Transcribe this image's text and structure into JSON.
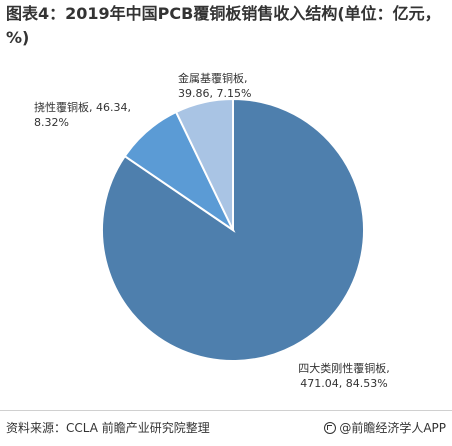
{
  "chart_data": {
    "type": "pie",
    "title": "图表4：2019年中国PCB覆铜板销售收入结构(单位：亿元，%)",
    "slices": [
      {
        "label": "四大类刚性覆铜板,",
        "value": 471.04,
        "percent": 84.53,
        "value_text": "471.04, 84.53%",
        "color": "#4e7fad"
      },
      {
        "label": "挠性覆铜板,",
        "value": 46.34,
        "percent": 8.32,
        "value_text": "46.34,",
        "percent_text": "8.32%",
        "color": "#5b9bd5"
      },
      {
        "label": "金属基覆铜板,",
        "value": 39.86,
        "percent": 7.15,
        "value_text": "39.86, 7.15%",
        "color": "#a9c4e4"
      }
    ],
    "start_angle_deg": 0,
    "direction": "clockwise",
    "legend": "none",
    "label_placement": "outside"
  },
  "footer": {
    "source": "资料来源：CCLA 前瞻产业研究院整理",
    "brand": "@前瞻经济学人APP",
    "brand_icon": "brand-logo-icon"
  },
  "colors": {
    "slice_border": "#ffffff",
    "label_text": "#333333"
  }
}
